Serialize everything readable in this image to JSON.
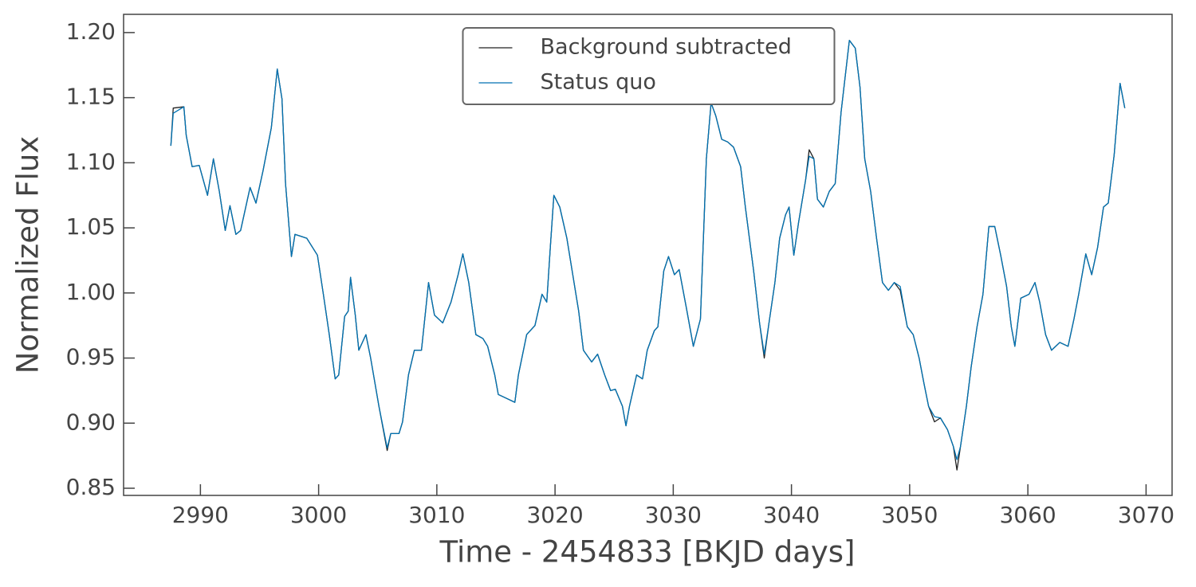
{
  "chart_data": {
    "type": "line",
    "xlabel": "Time - 2454833 [BKJD days]",
    "ylabel": "Normalized Flux",
    "x": [
      2987.5,
      2987.7,
      2988.6,
      2988.8,
      2989.3,
      2989.9,
      2990.6,
      2991.1,
      2991.6,
      2992.1,
      2992.5,
      2993.0,
      2993.4,
      2994.2,
      2994.7,
      2995.3,
      2996.0,
      2996.5,
      2996.9,
      2997.2,
      2997.7,
      2998.0,
      2999.0,
      2999.9,
      3000.4,
      3000.9,
      3001.4,
      3001.7,
      3002.2,
      3002.5,
      3002.7,
      3003.1,
      3003.4,
      3004.0,
      3004.4,
      3005.1,
      3005.8,
      3006.1,
      3006.8,
      3007.1,
      3007.6,
      3008.1,
      3008.7,
      3009.3,
      3009.8,
      3010.5,
      3011.2,
      3011.8,
      3012.2,
      3012.7,
      3013.3,
      3013.9,
      3014.3,
      3014.9,
      3015.2,
      3015.9,
      3016.6,
      3016.9,
      3017.6,
      3018.3,
      3018.9,
      3019.3,
      3019.6,
      3019.9,
      3020.4,
      3021.0,
      3021.5,
      3022.0,
      3022.4,
      3023.1,
      3023.6,
      3024.2,
      3024.7,
      3025.1,
      3025.7,
      3026.0,
      3026.3,
      3026.9,
      3027.4,
      3027.8,
      3028.4,
      3028.7,
      3029.2,
      3029.6,
      3030.1,
      3030.5,
      3031.1,
      3031.7,
      3032.3,
      3032.8,
      3033.2,
      3033.6,
      3034.1,
      3034.6,
      3035.1,
      3035.7,
      3036.1,
      3036.8,
      3037.3,
      3037.7,
      3038.1,
      3038.6,
      3039.0,
      3039.5,
      3039.8,
      3040.2,
      3040.6,
      3041.2,
      3041.5,
      3041.9,
      3042.2,
      3042.7,
      3043.2,
      3043.7,
      3044.2,
      3044.9,
      3045.4,
      3045.8,
      3046.2,
      3046.7,
      3047.2,
      3047.7,
      3048.2,
      3048.7,
      3049.2,
      3049.8,
      3050.3,
      3050.8,
      3051.2,
      3051.6,
      3052.1,
      3052.6,
      3053.2,
      3053.7,
      3054.0,
      3054.3,
      3054.8,
      3055.2,
      3055.7,
      3056.2,
      3056.7,
      3057.2,
      3057.7,
      3058.2,
      3058.6,
      3058.9,
      3059.4,
      3060.1,
      3060.6,
      3061.0,
      3061.5,
      3062.0,
      3062.7,
      3063.4,
      3063.9,
      3064.3,
      3064.9,
      3065.4,
      3065.9,
      3066.4,
      3066.8,
      3067.3,
      3067.8,
      3068.2
    ],
    "series": [
      {
        "name": "Background subtracted",
        "color": "#222222",
        "values": [
          1.113,
          1.142,
          1.143,
          1.121,
          1.097,
          1.098,
          1.075,
          1.103,
          1.078,
          1.048,
          1.067,
          1.045,
          1.048,
          1.081,
          1.069,
          1.094,
          1.127,
          1.172,
          1.149,
          1.084,
          1.028,
          1.045,
          1.042,
          1.029,
          0.999,
          0.968,
          0.934,
          0.937,
          0.982,
          0.986,
          1.012,
          0.983,
          0.956,
          0.968,
          0.95,
          0.913,
          0.879,
          0.892,
          0.892,
          0.901,
          0.937,
          0.956,
          0.956,
          1.008,
          0.983,
          0.977,
          0.993,
          1.014,
          1.03,
          1.008,
          0.968,
          0.965,
          0.959,
          0.937,
          0.922,
          0.919,
          0.916,
          0.937,
          0.968,
          0.975,
          0.999,
          0.993,
          1.035,
          1.075,
          1.066,
          1.042,
          1.014,
          0.986,
          0.956,
          0.947,
          0.953,
          0.937,
          0.925,
          0.926,
          0.913,
          0.898,
          0.913,
          0.937,
          0.934,
          0.956,
          0.971,
          0.974,
          1.017,
          1.028,
          1.014,
          1.018,
          0.989,
          0.959,
          0.98,
          1.103,
          1.146,
          1.136,
          1.118,
          1.116,
          1.112,
          1.097,
          1.066,
          1.017,
          0.977,
          0.95,
          0.977,
          1.008,
          1.042,
          1.06,
          1.066,
          1.029,
          1.054,
          1.087,
          1.11,
          1.103,
          1.072,
          1.066,
          1.078,
          1.084,
          1.139,
          1.194,
          1.188,
          1.158,
          1.103,
          1.078,
          1.042,
          1.008,
          1.002,
          1.008,
          1.002,
          0.974,
          0.968,
          0.95,
          0.931,
          0.913,
          0.901,
          0.904,
          0.895,
          0.882,
          0.864,
          0.882,
          0.913,
          0.943,
          0.974,
          0.999,
          1.051,
          1.051,
          1.029,
          1.005,
          0.974,
          0.959,
          0.996,
          0.999,
          1.008,
          0.993,
          0.968,
          0.956,
          0.962,
          0.959,
          0.98,
          0.999,
          1.03,
          1.014,
          1.035,
          1.066,
          1.069,
          1.106,
          1.161,
          1.142
        ]
      },
      {
        "name": "Status quo",
        "color": "#0072b2",
        "values": [
          1.113,
          1.138,
          1.143,
          1.121,
          1.097,
          1.098,
          1.075,
          1.103,
          1.078,
          1.048,
          1.067,
          1.045,
          1.048,
          1.081,
          1.069,
          1.094,
          1.127,
          1.172,
          1.149,
          1.084,
          1.028,
          1.045,
          1.042,
          1.029,
          0.999,
          0.968,
          0.934,
          0.937,
          0.982,
          0.986,
          1.012,
          0.983,
          0.956,
          0.968,
          0.95,
          0.913,
          0.881,
          0.892,
          0.892,
          0.901,
          0.937,
          0.956,
          0.956,
          1.008,
          0.983,
          0.977,
          0.993,
          1.014,
          1.03,
          1.008,
          0.968,
          0.965,
          0.959,
          0.937,
          0.922,
          0.919,
          0.916,
          0.937,
          0.968,
          0.975,
          0.999,
          0.993,
          1.035,
          1.075,
          1.066,
          1.042,
          1.014,
          0.986,
          0.956,
          0.947,
          0.953,
          0.937,
          0.925,
          0.926,
          0.913,
          0.898,
          0.913,
          0.937,
          0.934,
          0.956,
          0.971,
          0.974,
          1.017,
          1.028,
          1.014,
          1.018,
          0.989,
          0.959,
          0.98,
          1.103,
          1.146,
          1.136,
          1.118,
          1.116,
          1.112,
          1.097,
          1.066,
          1.017,
          0.977,
          0.953,
          0.977,
          1.008,
          1.042,
          1.06,
          1.066,
          1.029,
          1.054,
          1.087,
          1.105,
          1.103,
          1.072,
          1.066,
          1.078,
          1.084,
          1.139,
          1.194,
          1.188,
          1.158,
          1.103,
          1.078,
          1.042,
          1.008,
          1.002,
          1.008,
          1.005,
          0.974,
          0.968,
          0.95,
          0.931,
          0.913,
          0.905,
          0.904,
          0.895,
          0.882,
          0.872,
          0.882,
          0.913,
          0.943,
          0.974,
          0.999,
          1.051,
          1.051,
          1.029,
          1.005,
          0.974,
          0.959,
          0.996,
          0.999,
          1.008,
          0.993,
          0.968,
          0.956,
          0.962,
          0.959,
          0.98,
          0.999,
          1.03,
          1.014,
          1.035,
          1.066,
          1.069,
          1.106,
          1.161,
          1.142
        ]
      }
    ],
    "xlim": [
      2983.5,
      3072.2
    ],
    "xticks": [
      2990,
      3000,
      3010,
      3020,
      3030,
      3040,
      3050,
      3060,
      3070
    ],
    "ylim": [
      0.8445,
      1.214
    ],
    "yticks": [
      0.85,
      {
        "value": 0.9,
        "label": "0.90"
      },
      0.95,
      {
        "value": 1.0,
        "label": "1.00"
      },
      1.05,
      {
        "value": 1.1,
        "label": "1.10"
      },
      1.15,
      {
        "value": 1.2,
        "label": "1.20"
      }
    ],
    "legend": "upper center"
  }
}
